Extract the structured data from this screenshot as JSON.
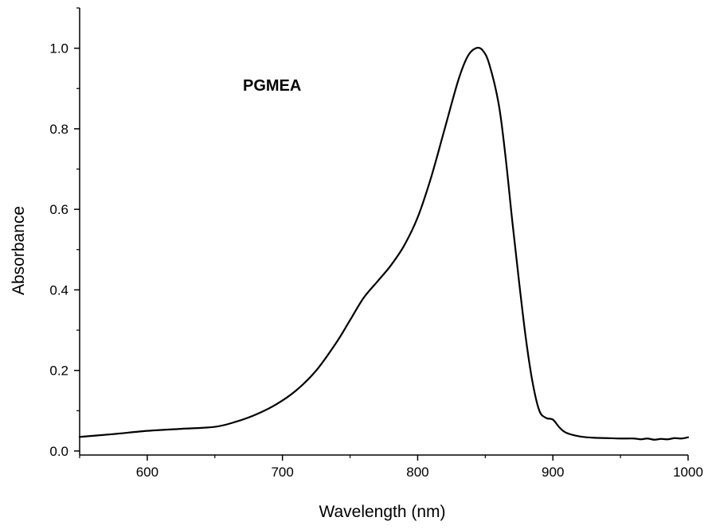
{
  "chart_data": {
    "type": "line",
    "title": "",
    "xlabel": "Wavelength (nm)",
    "ylabel": "Absorbance",
    "xlim": [
      550,
      1000
    ],
    "ylim": [
      -0.01,
      1.1
    ],
    "x_ticks": [
      600,
      700,
      800,
      900,
      1000
    ],
    "y_ticks": [
      0.0,
      0.2,
      0.4,
      0.6,
      0.8,
      1.0
    ],
    "x_tick_labels": [
      "600",
      "700",
      "800",
      "900",
      "1000"
    ],
    "y_tick_labels": [
      "0.0",
      "0.2",
      "0.4",
      "0.6",
      "0.8",
      "1.0"
    ],
    "annotation": "PGMEA",
    "grid": false,
    "line_color": "#000000",
    "series": [
      {
        "x": [
          550,
          575,
          600,
          625,
          650,
          665,
          680,
          695,
          710,
          725,
          740,
          750,
          760,
          770,
          780,
          790,
          800,
          810,
          820,
          830,
          837,
          843,
          848,
          853,
          860,
          865,
          870,
          875,
          880,
          885,
          890,
          895,
          900,
          905,
          910,
          920,
          930,
          940,
          950,
          960,
          965,
          970,
          975,
          980,
          985,
          990,
          995,
          1000
        ],
        "y": [
          0.035,
          0.042,
          0.05,
          0.055,
          0.06,
          0.072,
          0.09,
          0.115,
          0.15,
          0.2,
          0.27,
          0.325,
          0.38,
          0.42,
          0.46,
          0.51,
          0.58,
          0.68,
          0.8,
          0.92,
          0.98,
          1.0,
          0.995,
          0.96,
          0.86,
          0.73,
          0.57,
          0.42,
          0.28,
          0.17,
          0.1,
          0.082,
          0.078,
          0.058,
          0.045,
          0.036,
          0.033,
          0.032,
          0.031,
          0.031,
          0.029,
          0.031,
          0.028,
          0.03,
          0.029,
          0.032,
          0.031,
          0.034
        ]
      }
    ]
  }
}
